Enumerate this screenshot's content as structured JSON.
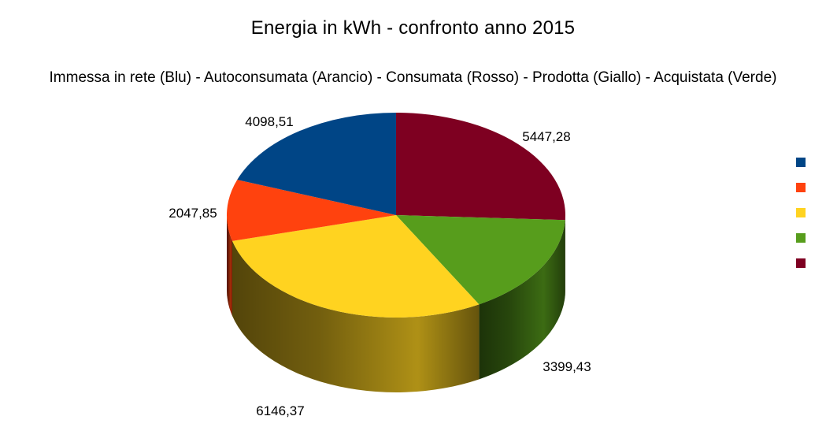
{
  "chart_data": {
    "type": "pie",
    "title": "Energia in kWh - confronto anno 2015",
    "subtitle": "Immessa in rete (Blu) - Autoconsumata (Arancio) - Consumata (Rosso) - Prodotta (Giallo) - Acquistata (Verde)",
    "three_d": true,
    "legend_position": "right",
    "slices": [
      {
        "value": 5447.28,
        "label": "5447,28",
        "color": "#7e0021"
      },
      {
        "value": 3399.43,
        "label": "3399,43",
        "color": "#579d1c"
      },
      {
        "value": 6146.37,
        "label": "6146,37",
        "color": "#ffd320"
      },
      {
        "value": 2047.85,
        "label": "2047,85",
        "color": "#ff420e"
      },
      {
        "value": 4098.51,
        "label": "4098,51",
        "color": "#004586"
      }
    ],
    "legend": [
      {
        "color": "#004586"
      },
      {
        "color": "#ff420e"
      },
      {
        "color": "#ffd320"
      },
      {
        "color": "#579d1c"
      },
      {
        "color": "#7e0021"
      }
    ]
  }
}
